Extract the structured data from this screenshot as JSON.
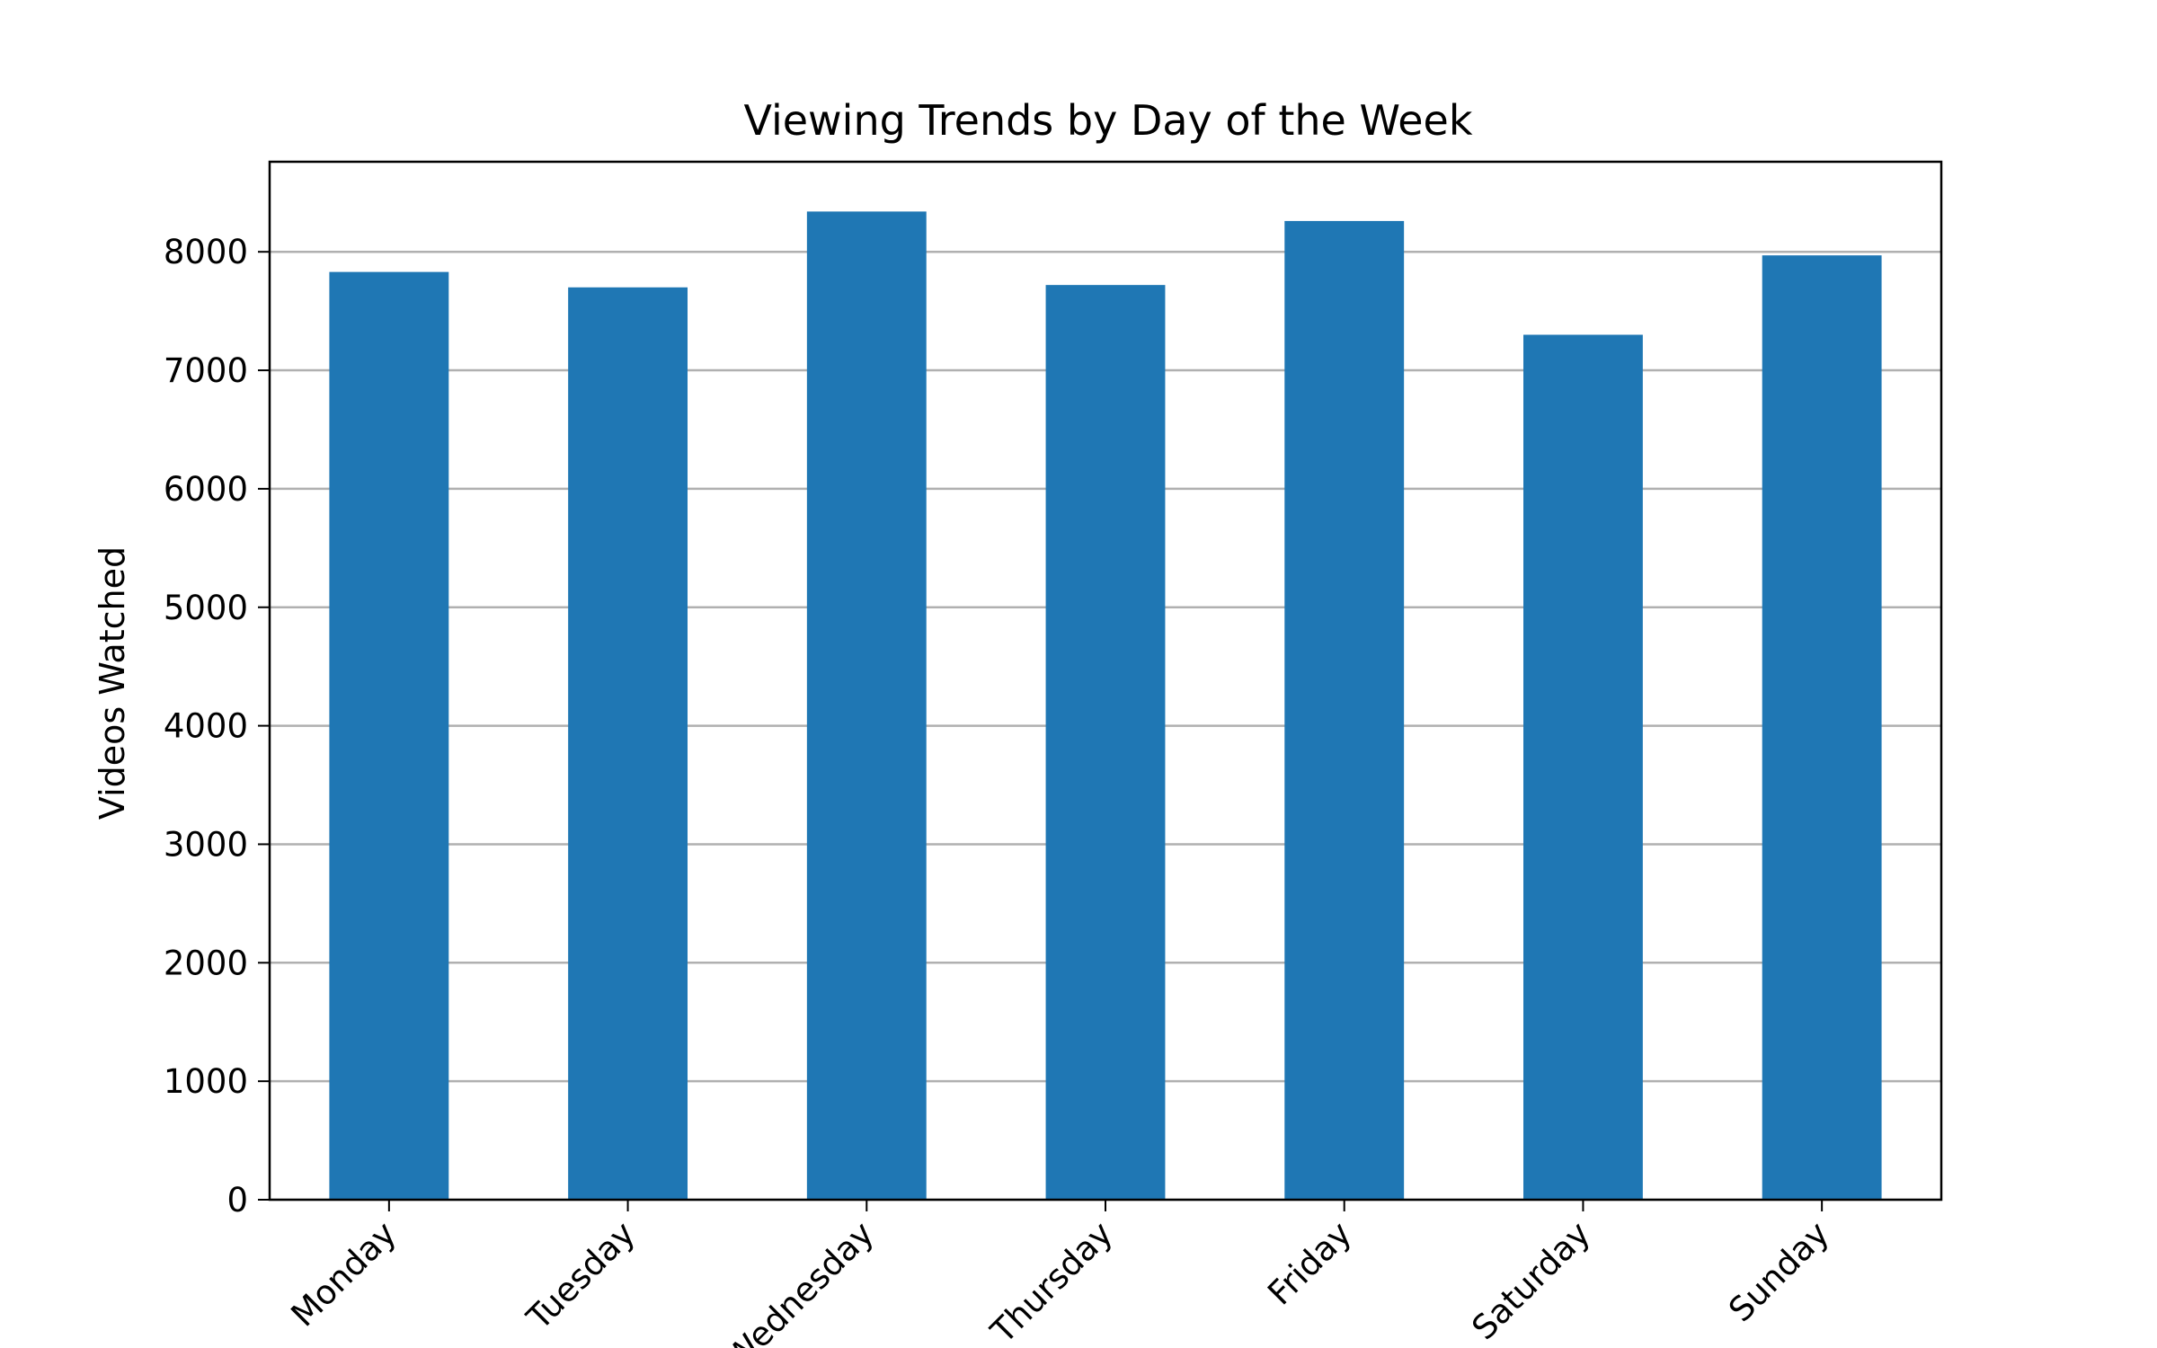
{
  "chart_data": {
    "type": "bar",
    "title": "Viewing Trends by Day of the Week",
    "xlabel": "",
    "ylabel": "Videos Watched",
    "categories": [
      "Monday",
      "Tuesday",
      "Wednesday",
      "Thursday",
      "Friday",
      "Saturday",
      "Sunday"
    ],
    "values": [
      7830,
      7700,
      8340,
      7720,
      8260,
      7300,
      7970
    ],
    "ylim": [
      0,
      8760
    ],
    "yticks": [
      0,
      1000,
      2000,
      3000,
      4000,
      5000,
      6000,
      7000,
      8000
    ],
    "grid": "y",
    "bar_color": "#1f77b4",
    "grid_color": "#b0b0b0"
  }
}
